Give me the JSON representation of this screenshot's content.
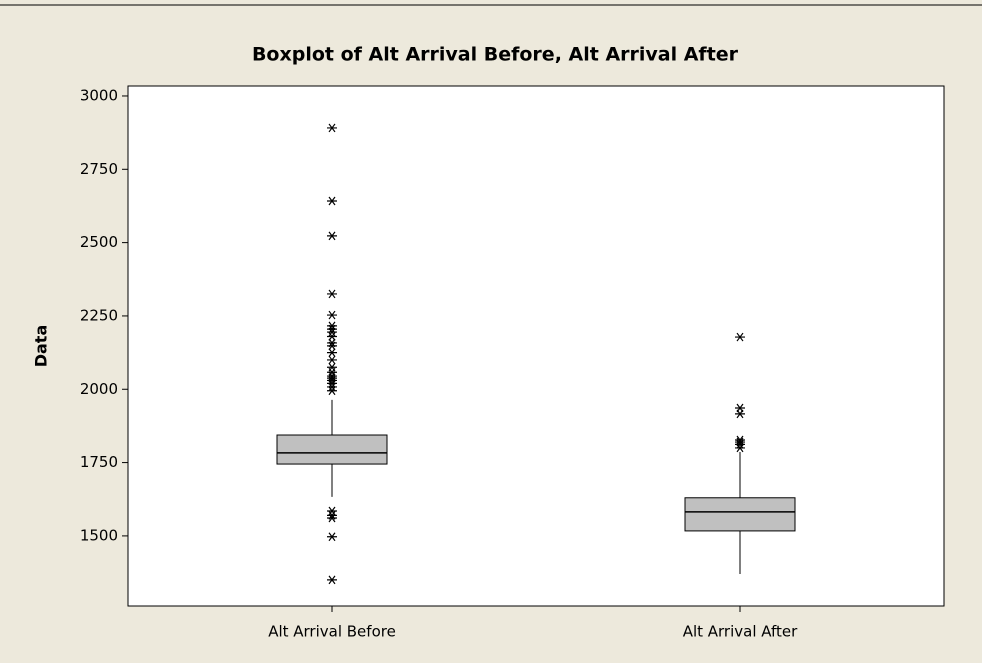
{
  "chart_data": {
    "type": "box",
    "title": "Boxplot of Alt Arrival Before, Alt Arrival After",
    "y_label": "Data",
    "categories": [
      "Alt Arrival Before",
      "Alt Arrival After"
    ],
    "ylim": [
      1261,
      3034
    ],
    "yticks": [
      1500,
      1750,
      2000,
      2250,
      2500,
      2750,
      3000
    ],
    "color": "#c0c0c0",
    "series": [
      {
        "q1": 1745,
        "median": 1783,
        "q3": 1844,
        "whisker_low": 1633,
        "whisker_high": 1964,
        "outliers": [
          2891,
          2642,
          2523,
          2325,
          2253,
          2216,
          2205,
          2195,
          2180,
          2158,
          2148,
          2125,
          2100,
          2075,
          2058,
          2045,
          2038,
          2030,
          2020,
          2008,
          1995,
          1585,
          1570,
          1561,
          1497,
          1350
        ]
      },
      {
        "q1": 1517,
        "median": 1582,
        "q3": 1630,
        "whisker_low": 1370,
        "whisker_high": 1786,
        "outliers": [
          2178,
          1936,
          1916,
          1827,
          1820,
          1812,
          1800
        ]
      }
    ]
  }
}
